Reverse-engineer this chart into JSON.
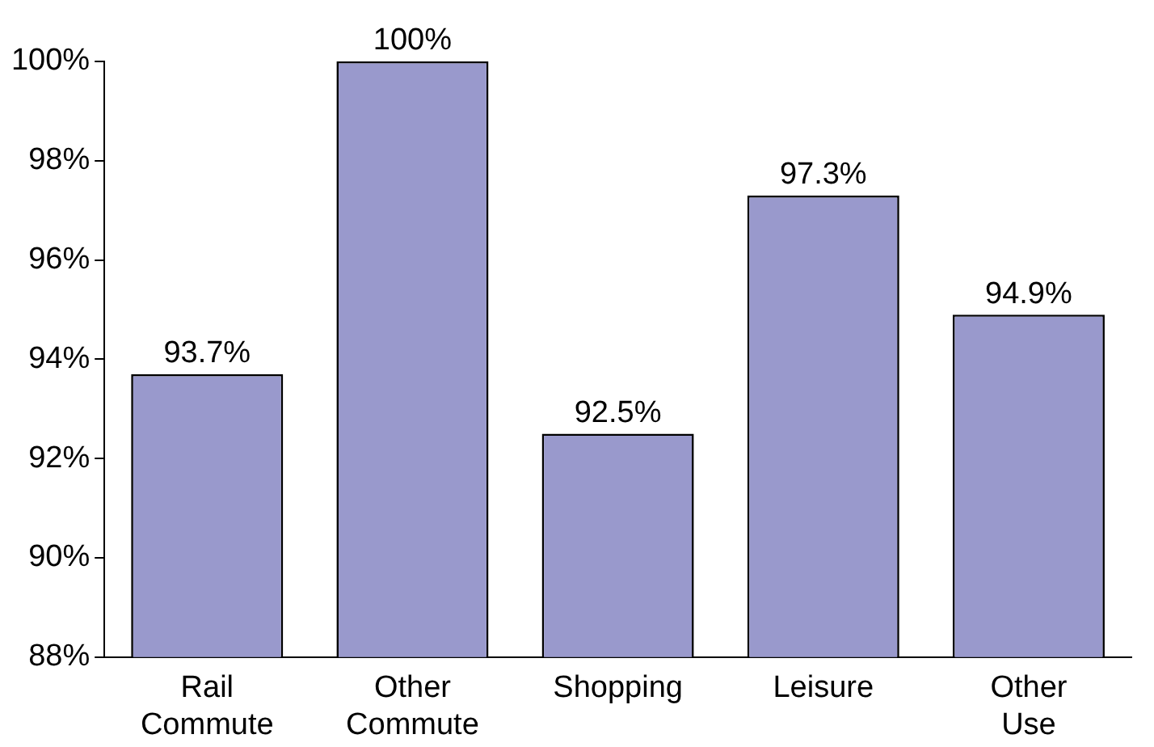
{
  "chart_data": {
    "type": "bar",
    "categories": [
      "Rail Commute",
      "Other Commute",
      "Shopping",
      "Leisure",
      "Other Use"
    ],
    "values": [
      93.7,
      100,
      92.5,
      97.3,
      94.9
    ],
    "value_labels": [
      "93.7%",
      "100%",
      "92.5%",
      "97.3%",
      "94.9%"
    ],
    "color": "#9999cc",
    "ylim": [
      88,
      100
    ],
    "yticks": [
      {
        "value": 88,
        "label": "88%"
      },
      {
        "value": 90,
        "label": "90%"
      },
      {
        "value": 92,
        "label": "92%"
      },
      {
        "value": 94,
        "label": "94%"
      },
      {
        "value": 96,
        "label": "96%"
      },
      {
        "value": 98,
        "label": "98%"
      },
      {
        "value": 100,
        "label": "100%"
      }
    ],
    "grid": false,
    "legend": false
  }
}
